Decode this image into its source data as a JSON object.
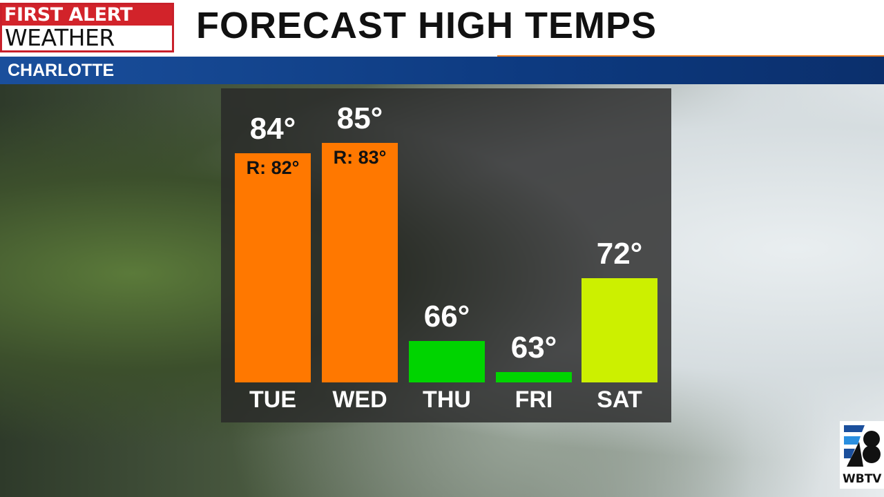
{
  "header": {
    "logo_line1": "FIRST ALERT",
    "logo_line2": "WEATHER",
    "title": "FORECAST HIGH TEMPS",
    "location": "CHARLOTTE"
  },
  "station_logo": {
    "text": "WBTV",
    "number": "3"
  },
  "chart_data": {
    "type": "bar",
    "title": "FORECAST HIGH TEMPS",
    "categories": [
      "TUE",
      "WED",
      "THU",
      "FRI",
      "SAT"
    ],
    "values": [
      84,
      85,
      66,
      63,
      72
    ],
    "value_labels": [
      "84°",
      "85°",
      "66°",
      "63°",
      "72°"
    ],
    "record_labels": [
      "R: 82°",
      "R: 83°",
      null,
      null,
      null
    ],
    "records": [
      82,
      83,
      null,
      null,
      null
    ],
    "colors": [
      "#ff7800",
      "#ff7800",
      "#00d400",
      "#00d400",
      "#ccf000"
    ],
    "ylim": [
      62,
      85
    ],
    "grid": false
  }
}
